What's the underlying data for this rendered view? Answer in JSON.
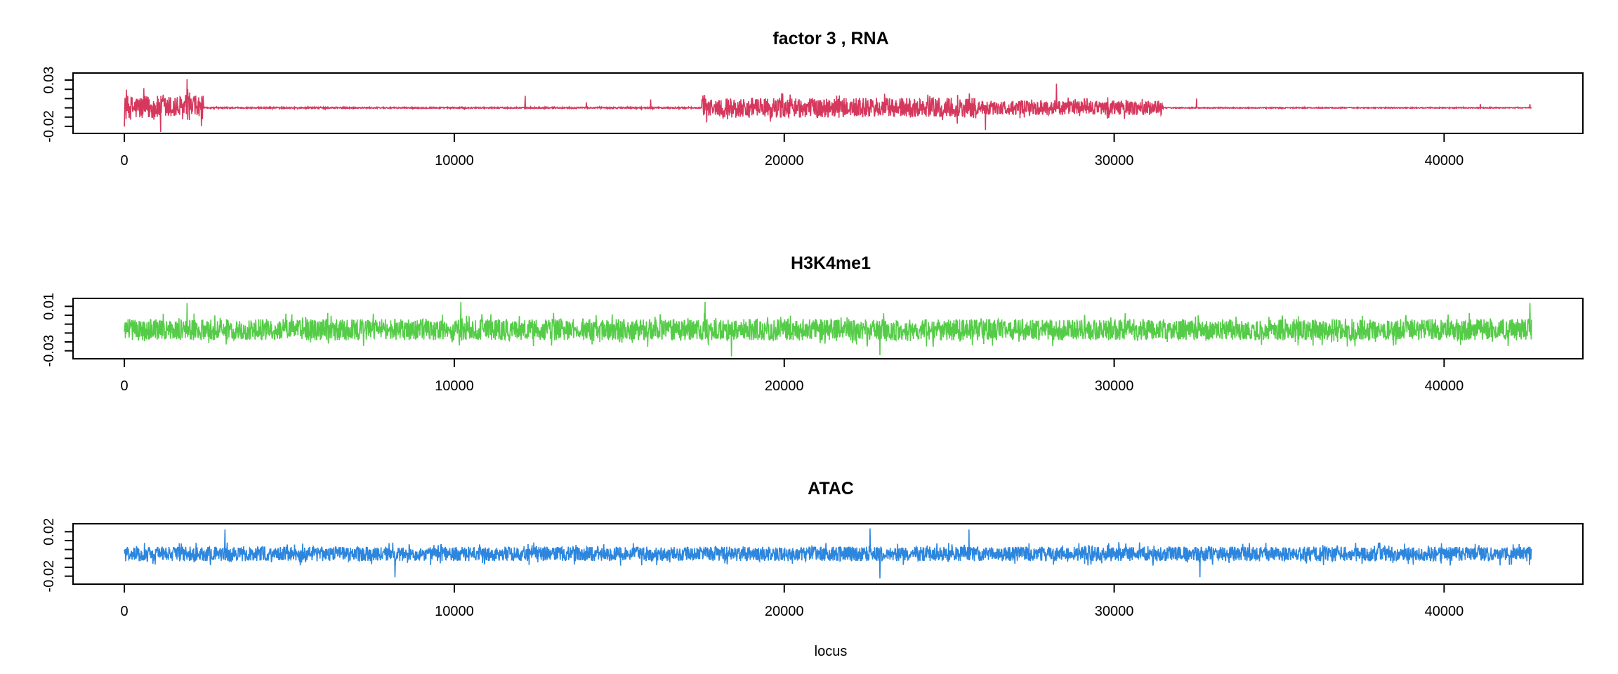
{
  "chart_data": [
    {
      "type": "line",
      "title": "factor  3 , RNA",
      "xlabel": "",
      "ylabel": "",
      "color": "#D6385D",
      "xlim": [
        0,
        42650
      ],
      "ylim": [
        -0.025,
        0.035
      ],
      "x_ticks": [
        0,
        10000,
        20000,
        30000,
        40000
      ],
      "x_tick_labels": [
        "0",
        "10000",
        "20000",
        "30000",
        "40000"
      ],
      "y_ticks": [
        -0.02,
        0.03
      ],
      "y_tick_labels": [
        "-0.02",
        "0.03"
      ],
      "grid": false,
      "legend": "none",
      "series": [
        {
          "profile": {
            "baseline": 0.0,
            "amplitude_by_region": [
              {
                "x": [
                  0,
                  2400
                ],
                "amp": 0.022
              },
              {
                "x": [
                  2400,
                  17500
                ],
                "amp": 0.0012
              },
              {
                "x": [
                  17500,
                  25800
                ],
                "amp": 0.018
              },
              {
                "x": [
                  25800,
                  31500
                ],
                "amp": 0.013
              },
              {
                "x": [
                  31500,
                  42650
                ],
                "amp": 0.0008
              }
            ],
            "spikes": [
              {
                "x": 1900,
                "y": 0.031
              },
              {
                "x": 1100,
                "y": -0.026
              },
              {
                "x": 12150,
                "y": 0.013
              },
              {
                "x": 14000,
                "y": 0.006
              },
              {
                "x": 15950,
                "y": 0.009
              },
              {
                "x": 28250,
                "y": 0.026
              },
              {
                "x": 26100,
                "y": -0.024
              },
              {
                "x": 32500,
                "y": 0.01
              },
              {
                "x": 41100,
                "y": 0.004
              },
              {
                "x": 42600,
                "y": 0.004
              }
            ]
          }
        }
      ]
    },
    {
      "type": "line",
      "title": "H3K4me1",
      "xlabel": "",
      "ylabel": "",
      "color": "#55CC48",
      "xlim": [
        0,
        42650
      ],
      "ylim": [
        -0.035,
        0.015
      ],
      "x_ticks": [
        0,
        10000,
        20000,
        30000,
        40000
      ],
      "x_tick_labels": [
        "0",
        "10000",
        "20000",
        "30000",
        "40000"
      ],
      "y_ticks": [
        -0.03,
        0.01
      ],
      "y_tick_labels": [
        "-0.03",
        "0.01"
      ],
      "grid": false,
      "legend": "none",
      "series": [
        {
          "profile": {
            "baseline": -0.011,
            "amplitude_by_region": [
              {
                "x": [
                  0,
                  42650
                ],
                "amp": 0.016
              }
            ],
            "spikes": [
              {
                "x": 1900,
                "y": 0.013
              },
              {
                "x": 10200,
                "y": 0.014
              },
              {
                "x": 17600,
                "y": 0.014
              },
              {
                "x": 18400,
                "y": -0.035
              },
              {
                "x": 22900,
                "y": -0.034
              },
              {
                "x": 42600,
                "y": 0.013
              }
            ]
          }
        }
      ]
    },
    {
      "type": "line",
      "title": "ATAC",
      "xlabel": "locus",
      "ylabel": "",
      "color": "#2C86DE",
      "xlim": [
        0,
        42650
      ],
      "ylim": [
        -0.025,
        0.025
      ],
      "x_ticks": [
        0,
        10000,
        20000,
        30000,
        40000
      ],
      "x_tick_labels": [
        "0",
        "10000",
        "20000",
        "30000",
        "40000"
      ],
      "y_ticks": [
        -0.02,
        0.02
      ],
      "y_tick_labels": [
        "-0.02",
        "0.02"
      ],
      "grid": false,
      "legend": "none",
      "series": [
        {
          "profile": {
            "baseline": 0.0,
            "amplitude_by_region": [
              {
                "x": [
                  0,
                  42650
                ],
                "amp": 0.011
              }
            ],
            "spikes": [
              {
                "x": 3050,
                "y": 0.022
              },
              {
                "x": 8200,
                "y": -0.021
              },
              {
                "x": 22600,
                "y": 0.023
              },
              {
                "x": 22900,
                "y": -0.022
              },
              {
                "x": 25600,
                "y": 0.022
              },
              {
                "x": 32600,
                "y": -0.021
              }
            ]
          }
        }
      ]
    }
  ]
}
